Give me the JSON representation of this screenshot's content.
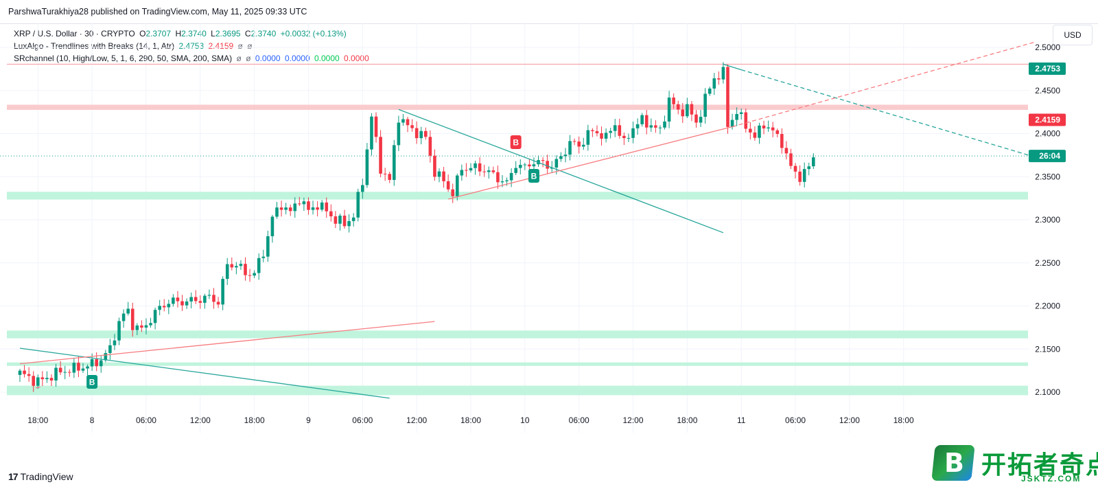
{
  "header": {
    "published": "ParshwaTurakhiya28 published on TradingView.com, May 11, 2025 09:33 UTC"
  },
  "legend": {
    "symbol": "XRP / U.S. Dollar · 30 · CRYPTO",
    "o_label": "O",
    "o_value": "2.3707",
    "h_label": "H",
    "h_value": "2.3740",
    "l_label": "L",
    "l_value": "2.3695",
    "c_label": "C",
    "c_value": "2.3740",
    "change": "+0.0032 (+0.13%)",
    "lux_name": "LuxAlgo - Trendlines with Breaks (14, 1, Atr)",
    "lux_v1": "2.4753",
    "lux_v2": "2.4159",
    "lux_empty1": "ø",
    "lux_empty2": "ø",
    "sr_name": "SRchannel (10, High/Low, 5, 1, 6, 290, 50, SMA, 200, SMA)",
    "sr_empty1": "ø",
    "sr_empty2": "ø",
    "sr_v1": "0.0000",
    "sr_v2": "0.0000",
    "sr_v3": "0.0000",
    "sr_v4": "0.0000"
  },
  "currency_button": "USD",
  "footer": {
    "brand": "TradingView",
    "mark": "17"
  },
  "watermark": {
    "badge": "B",
    "text": "开拓者奇点",
    "site": "JSKTZ.COM"
  },
  "colors": {
    "up": "#089981",
    "down": "#f23645",
    "zone_green": "#b9f3d9",
    "zone_red": "#f9c5c8",
    "trend_teal": "#26a69a",
    "trend_red": "#f77c80"
  },
  "chart_data": {
    "type": "candlestick",
    "symbol": "XRP / U.S. Dollar",
    "interval": "30",
    "ylim": [
      2.075,
      2.515
    ],
    "y_ticks": [
      "2.5000",
      "2.4500",
      "2.4000",
      "2.3500",
      "2.3000",
      "2.2500",
      "2.2000",
      "2.1500",
      "2.1000"
    ],
    "x_tick_labels": [
      "18:00",
      "8",
      "06:00",
      "12:00",
      "18:00",
      "9",
      "06:00",
      "12:00",
      "18:00",
      "10",
      "06:00",
      "12:00",
      "18:00",
      "11",
      "06:00",
      "12:00",
      "18:00"
    ],
    "x_tick_bars": [
      4,
      16,
      28,
      40,
      52,
      64,
      76,
      88,
      100,
      112,
      124,
      136,
      148,
      160,
      172,
      184,
      196
    ],
    "last_price_countdown": "26:04",
    "last_price": 2.374,
    "price_labels": [
      {
        "value": 2.4753,
        "text": "2.4753",
        "color": "#089981"
      },
      {
        "value": 2.4159,
        "text": "2.4159",
        "color": "#f23645"
      }
    ],
    "sr_zones": [
      {
        "low": 2.4275,
        "high": 2.4335,
        "color": "red"
      },
      {
        "low": 2.3235,
        "high": 2.3325,
        "color": "green"
      },
      {
        "low": 2.1625,
        "high": 2.1715,
        "color": "green"
      },
      {
        "low": 2.1305,
        "high": 2.1345,
        "color": "green"
      },
      {
        "low": 2.0965,
        "high": 2.1075,
        "color": "green"
      }
    ],
    "resistance_line": 2.4805,
    "trendlines": [
      {
        "color": "teal",
        "x1": 0,
        "y1": 2.151,
        "x2": 82,
        "y2": 2.093,
        "dashed": false
      },
      {
        "color": "red",
        "x1": 0,
        "y1": 2.133,
        "x2": 92,
        "y2": 2.182,
        "dashed": false
      },
      {
        "color": "red",
        "x1": 3.5,
        "y1": 2.105,
        "x2": 4.5,
        "y2": 2.106,
        "dashed": false
      },
      {
        "color": "teal",
        "x1": 84,
        "y1": 2.428,
        "x2": 156,
        "y2": 2.285,
        "dashed": false
      },
      {
        "color": "red",
        "x1": 95,
        "y1": 2.324,
        "x2": 158,
        "y2": 2.408,
        "dashed": false
      },
      {
        "color": "teal",
        "x1": 156,
        "y1": 2.4805,
        "x2": 160,
        "y2": 2.474,
        "dashed": false
      },
      {
        "color": "teal",
        "x1": 160,
        "y1": 2.474,
        "x2": 225,
        "y2": 2.373,
        "dashed": true
      },
      {
        "color": "red",
        "x1": 158,
        "y1": 2.408,
        "x2": 225,
        "y2": 2.506,
        "dashed": true
      }
    ],
    "break_markers": [
      {
        "bar": 16,
        "value": 2.112,
        "color": "#089981",
        "text": "B",
        "position": "below"
      },
      {
        "bar": 110,
        "value": 2.39,
        "color": "#f23645",
        "text": "B",
        "position": "above"
      },
      {
        "bar": 114,
        "value": 2.351,
        "color": "#089981",
        "text": "B",
        "position": "below"
      }
    ],
    "anchors": [
      [
        0,
        2.122
      ],
      [
        4,
        2.112
      ],
      [
        9,
        2.124
      ],
      [
        13,
        2.128
      ],
      [
        16,
        2.132
      ],
      [
        18,
        2.138
      ],
      [
        20,
        2.15
      ],
      [
        22,
        2.182
      ],
      [
        24,
        2.195
      ],
      [
        25,
        2.178
      ],
      [
        27,
        2.172
      ],
      [
        29,
        2.185
      ],
      [
        31,
        2.198
      ],
      [
        33,
        2.205
      ],
      [
        37,
        2.205
      ],
      [
        42,
        2.21
      ],
      [
        44,
        2.205
      ],
      [
        46,
        2.248
      ],
      [
        48,
        2.248
      ],
      [
        50,
        2.238
      ],
      [
        52,
        2.238
      ],
      [
        54,
        2.262
      ],
      [
        56,
        2.302
      ],
      [
        58,
        2.318
      ],
      [
        60,
        2.308
      ],
      [
        62,
        2.325
      ],
      [
        64,
        2.31
      ],
      [
        66,
        2.318
      ],
      [
        68,
        2.31
      ],
      [
        70,
        2.3
      ],
      [
        72,
        2.295
      ],
      [
        74,
        2.305
      ],
      [
        76,
        2.345
      ],
      [
        78,
        2.42
      ],
      [
        80,
        2.36
      ],
      [
        82,
        2.345
      ],
      [
        84,
        2.42
      ],
      [
        86,
        2.408
      ],
      [
        90,
        2.395
      ],
      [
        92,
        2.355
      ],
      [
        94,
        2.345
      ],
      [
        96,
        2.33
      ],
      [
        98,
        2.36
      ],
      [
        102,
        2.36
      ],
      [
        104,
        2.355
      ],
      [
        108,
        2.342
      ],
      [
        110,
        2.365
      ],
      [
        112,
        2.36
      ],
      [
        114,
        2.368
      ],
      [
        118,
        2.362
      ],
      [
        120,
        2.372
      ],
      [
        122,
        2.39
      ],
      [
        124,
        2.385
      ],
      [
        126,
        2.4
      ],
      [
        128,
        2.402
      ],
      [
        130,
        2.395
      ],
      [
        132,
        2.412
      ],
      [
        134,
        2.388
      ],
      [
        136,
        2.408
      ],
      [
        138,
        2.415
      ],
      [
        140,
        2.41
      ],
      [
        142,
        2.402
      ],
      [
        144,
        2.44
      ],
      [
        146,
        2.425
      ],
      [
        148,
        2.43
      ],
      [
        150,
        2.412
      ],
      [
        152,
        2.44
      ],
      [
        154,
        2.465
      ],
      [
        156,
        2.47
      ],
      [
        157,
        2.41
      ],
      [
        159,
        2.425
      ],
      [
        161,
        2.41
      ],
      [
        163,
        2.395
      ],
      [
        165,
        2.412
      ],
      [
        167,
        2.402
      ],
      [
        169,
        2.39
      ],
      [
        171,
        2.36
      ],
      [
        173,
        2.35
      ],
      [
        175,
        2.36
      ],
      [
        176,
        2.374
      ]
    ],
    "last_bar": 176
  }
}
